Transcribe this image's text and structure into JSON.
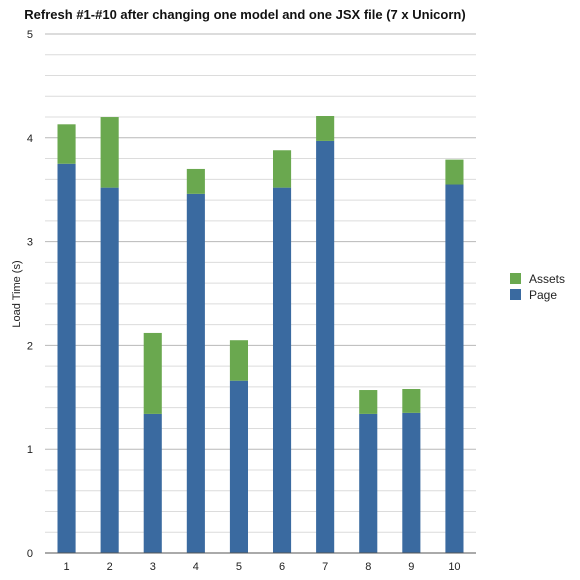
{
  "chart_data": {
    "type": "bar",
    "stacked": true,
    "title": "Refresh #1-#10 after changing one model and one JSX file (7 x Unicorn)",
    "xlabel": "",
    "ylabel": "Load Time (s)",
    "ylim": [
      0,
      5
    ],
    "y_ticks": [
      0,
      1,
      2,
      3,
      4,
      5
    ],
    "minor_grid_step": 0.2,
    "grid": true,
    "legend_position": "right",
    "categories": [
      "1",
      "2",
      "3",
      "4",
      "5",
      "6",
      "7",
      "8",
      "9",
      "10"
    ],
    "series": [
      {
        "name": "Page",
        "color": "#3a6aa0",
        "values": [
          3.75,
          3.52,
          1.34,
          3.46,
          1.66,
          3.52,
          3.97,
          1.34,
          1.35,
          3.55
        ]
      },
      {
        "name": "Assets",
        "color": "#6aa84f",
        "values": [
          0.38,
          0.68,
          0.78,
          0.24,
          0.39,
          0.36,
          0.24,
          0.23,
          0.23,
          0.24
        ]
      }
    ],
    "legend_order": [
      "Assets",
      "Page"
    ]
  }
}
